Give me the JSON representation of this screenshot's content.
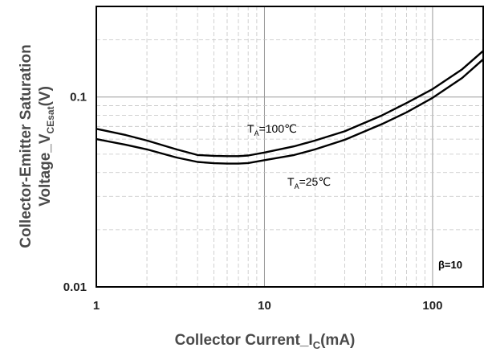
{
  "chart_data": {
    "type": "line",
    "x_scale": "log",
    "y_scale": "log",
    "xlim": [
      1,
      200
    ],
    "ylim": [
      0.01,
      0.3
    ],
    "x_ticks": [
      {
        "value": 1,
        "label": "1"
      },
      {
        "value": 10,
        "label": "10"
      },
      {
        "value": 100,
        "label": "100"
      }
    ],
    "y_ticks": [
      {
        "value": 0.01,
        "label": "0.01"
      },
      {
        "value": 0.1,
        "label": "0.1"
      }
    ],
    "xlabel": {
      "main": "Collector Current_I",
      "sub": "C",
      "tail": "(mA)"
    },
    "ylabel": {
      "line1": "Collector-Emitter Saturation",
      "line2_main": "Voltage_V",
      "line2_sub": "CEsat",
      "line2_tail": "(V)"
    },
    "grid": true,
    "series": [
      {
        "name": "TA=100℃",
        "label": {
          "main": "T",
          "sub": "A",
          "tail": "=100℃"
        },
        "x": [
          1,
          1.5,
          2,
          3,
          4,
          5,
          6,
          7,
          8,
          10,
          15,
          20,
          30,
          50,
          70,
          100,
          150,
          200
        ],
        "y": [
          0.068,
          0.063,
          0.059,
          0.053,
          0.0495,
          0.049,
          0.0488,
          0.0488,
          0.0492,
          0.051,
          0.055,
          0.059,
          0.066,
          0.08,
          0.093,
          0.11,
          0.14,
          0.175
        ]
      },
      {
        "name": "TA=25℃",
        "label": {
          "main": "T",
          "sub": "A",
          "tail": "=25℃"
        },
        "x": [
          1,
          1.5,
          2,
          3,
          4,
          5,
          6,
          7,
          8,
          10,
          15,
          20,
          30,
          50,
          70,
          100,
          150,
          200
        ],
        "y": [
          0.06,
          0.056,
          0.053,
          0.048,
          0.0455,
          0.0448,
          0.0446,
          0.0446,
          0.0449,
          0.0465,
          0.0495,
          0.053,
          0.0595,
          0.072,
          0.083,
          0.099,
          0.126,
          0.158
        ]
      }
    ],
    "annotations": [
      {
        "text": "β=10"
      }
    ]
  }
}
